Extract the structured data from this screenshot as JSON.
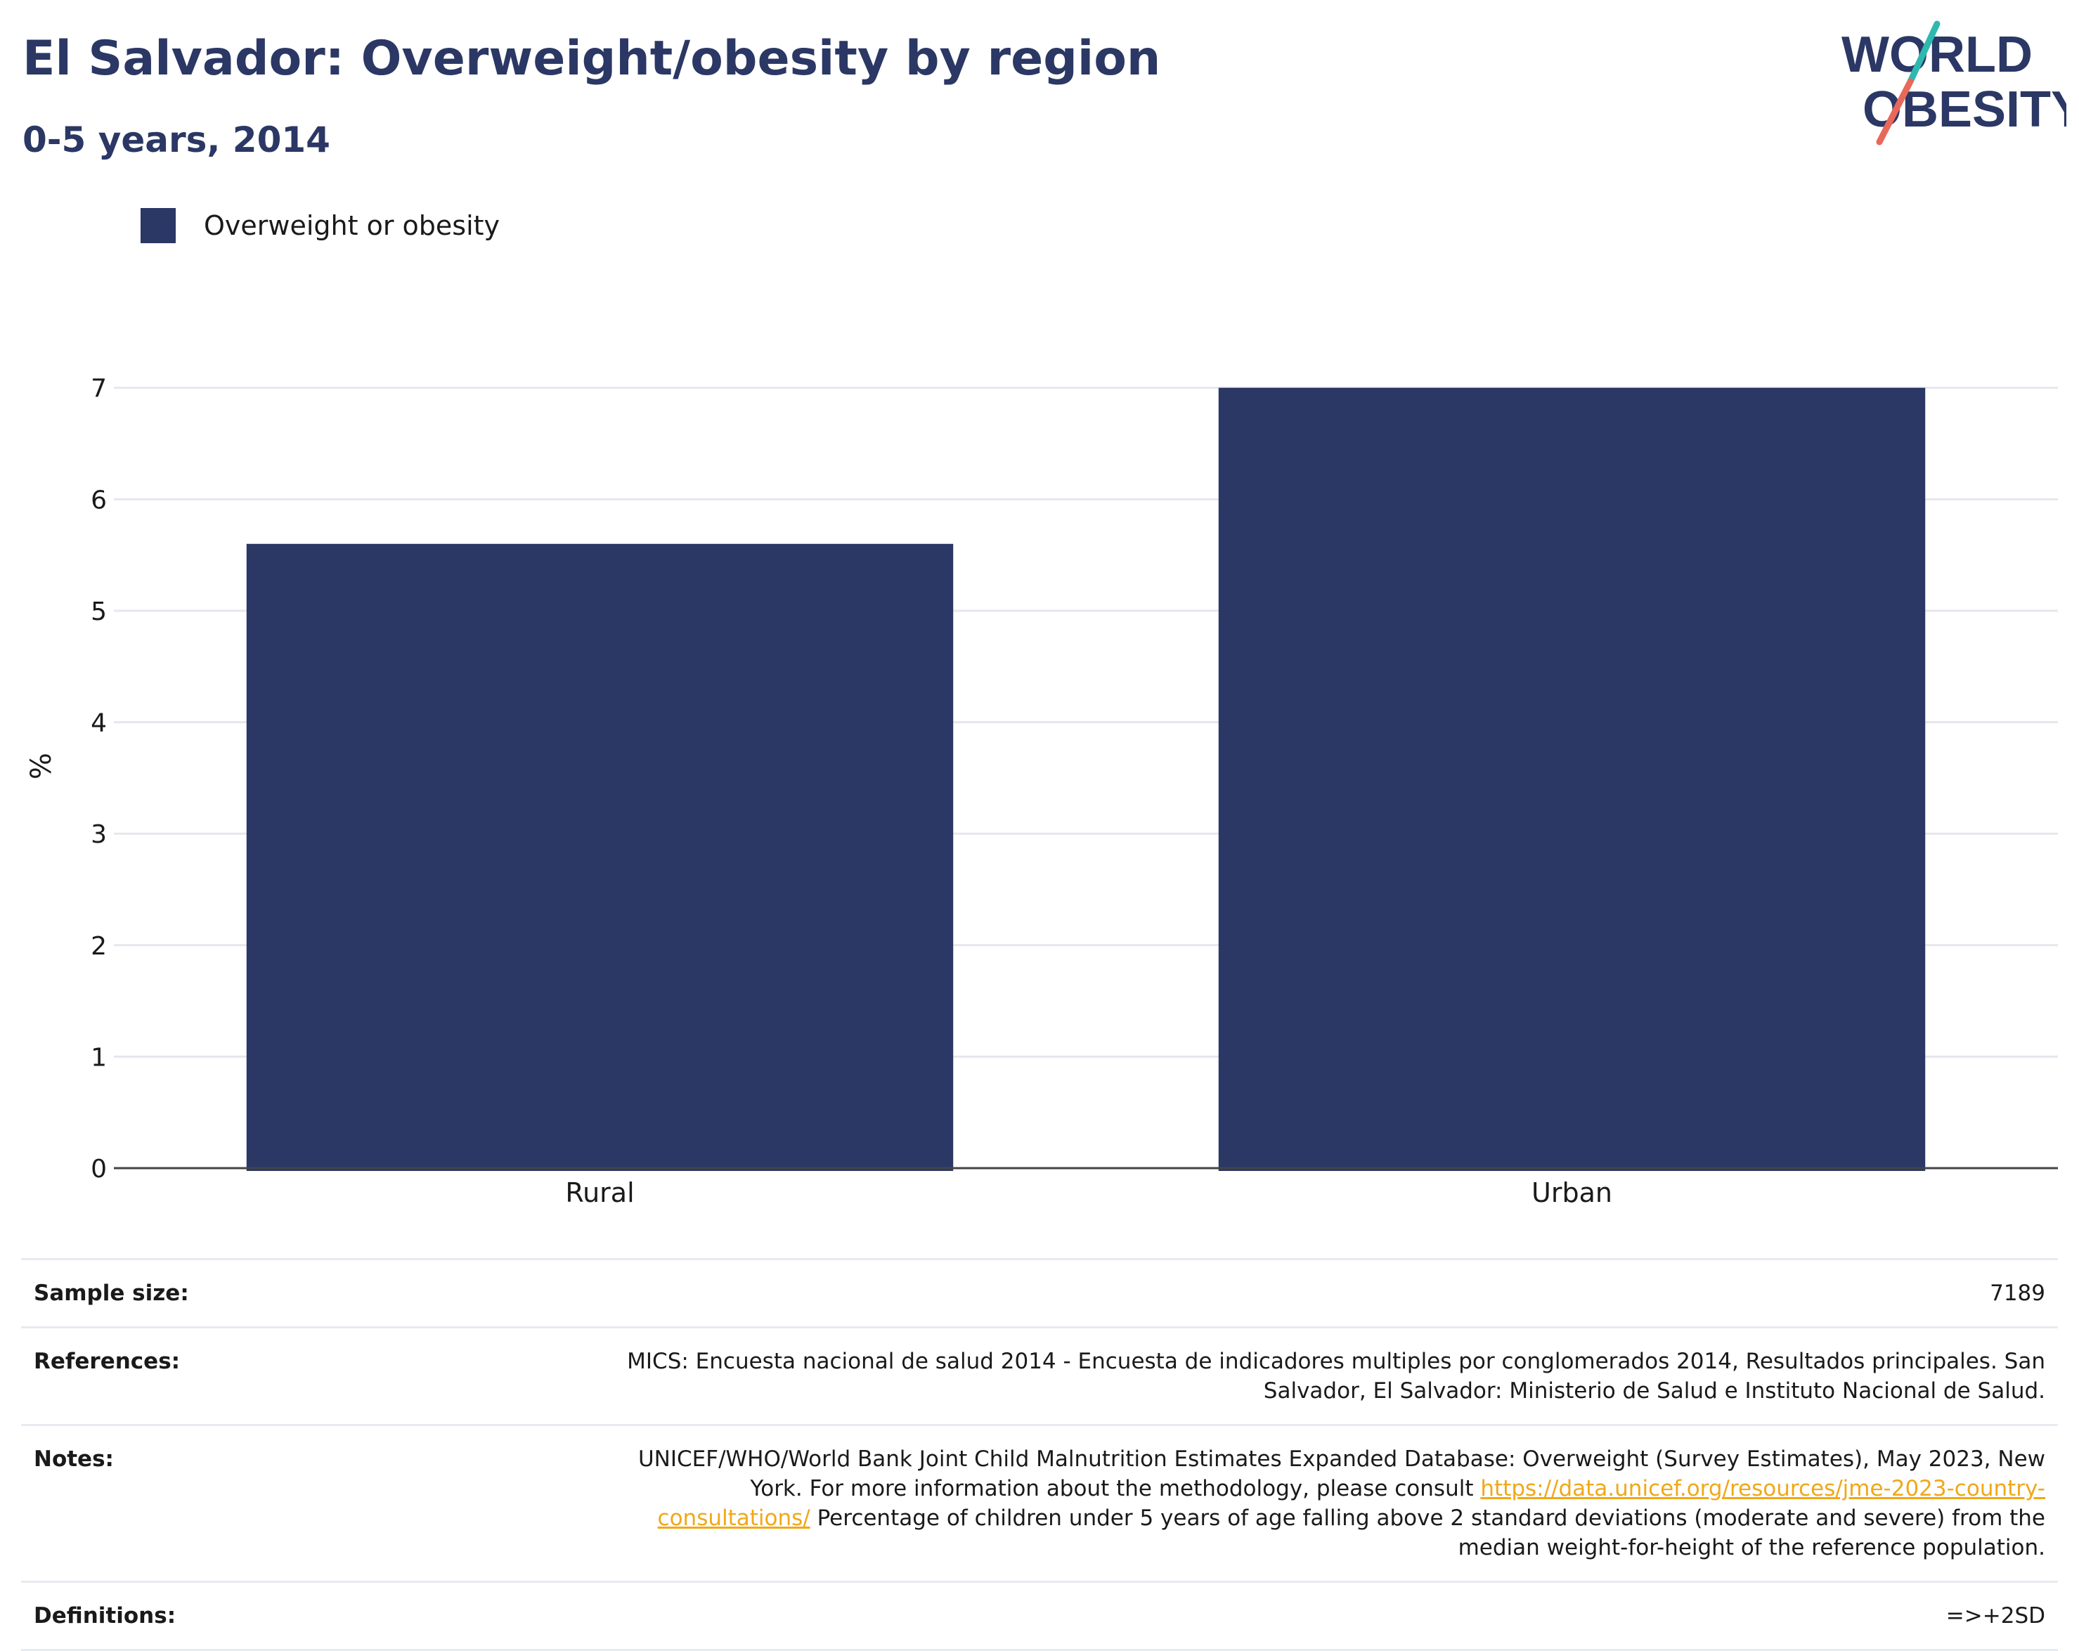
{
  "header": {
    "title": "El Salvador: Overweight/obesity by region",
    "subtitle": "0-5 years, 2014"
  },
  "logo": {
    "line1": "WORLD",
    "line2": "OBESITY",
    "colors": {
      "text": "#2b3764",
      "slash_top": "#2fb8b0",
      "slash_bottom": "#e8685a"
    }
  },
  "colors": {
    "bar": "#2b3764",
    "grid": "#e6e6ee",
    "axis": "#444444",
    "link": "#f0a818"
  },
  "chart_data": {
    "type": "bar",
    "categories": [
      "Rural",
      "Urban"
    ],
    "series": [
      {
        "name": "Overweight or obesity",
        "values": [
          5.6,
          7.0
        ]
      }
    ],
    "ylabel": "%",
    "xlabel": "",
    "ylim": [
      0,
      7
    ],
    "yticks": [
      0,
      1,
      2,
      3,
      4,
      5,
      6,
      7
    ],
    "grid": true,
    "legend": "top-left"
  },
  "info": {
    "sample_size": {
      "label": "Sample size:",
      "value": "7189"
    },
    "references": {
      "label": "References:",
      "value": "MICS: Encuesta nacional de salud 2014 - Encuesta de indicadores multiples por conglomerados 2014, Resultados principales. San Salvador, El Salvador: Ministerio de Salud e Instituto Nacional de Salud."
    },
    "notes": {
      "label": "Notes:",
      "text_before": "UNICEF/WHO/World Bank Joint Child Malnutrition Estimates Expanded Database: Overweight (Survey Estimates), May 2023, New York. For more information about the methodology, please consult",
      "link": "https://data.unicef.org/resources/jme-2023-country-consultations/",
      "text_after": "Percentage of children under 5 years of age falling above 2 standard deviations (moderate and severe) from the median weight-for-height of the reference population."
    },
    "definitions": {
      "label": "Definitions:",
      "value": "=>+2SD"
    }
  }
}
